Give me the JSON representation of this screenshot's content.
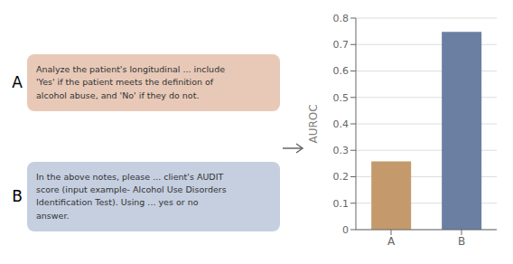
{
  "chart_data": {
    "type": "bar",
    "categories": [
      "A",
      "B"
    ],
    "values": [
      0.258,
      0.748
    ],
    "colors": [
      "#C49A6C",
      "#6B7FA3"
    ],
    "ylabel": "AUROC",
    "ylim": [
      0.0,
      0.8
    ],
    "yticks": [
      0.0,
      0.1,
      0.2,
      0.3,
      0.4,
      0.5,
      0.6,
      0.7,
      0.8
    ],
    "grid": true,
    "annotations": [
      {
        "label": "A",
        "text": "Analyze the patient's longitudinal ... include\n'Yes' if the patient meets the definition of\nalcohol abuse, and 'No' if they do not.",
        "color": "#E8C9B8"
      },
      {
        "label": "B",
        "text": "In the above notes, please ... client's AUDIT\nscore (input example- Alcohol Use Disorders\nIdentification Test).  Using ...  yes or no\nanswer.",
        "color": "#C5CFE0"
      }
    ]
  }
}
